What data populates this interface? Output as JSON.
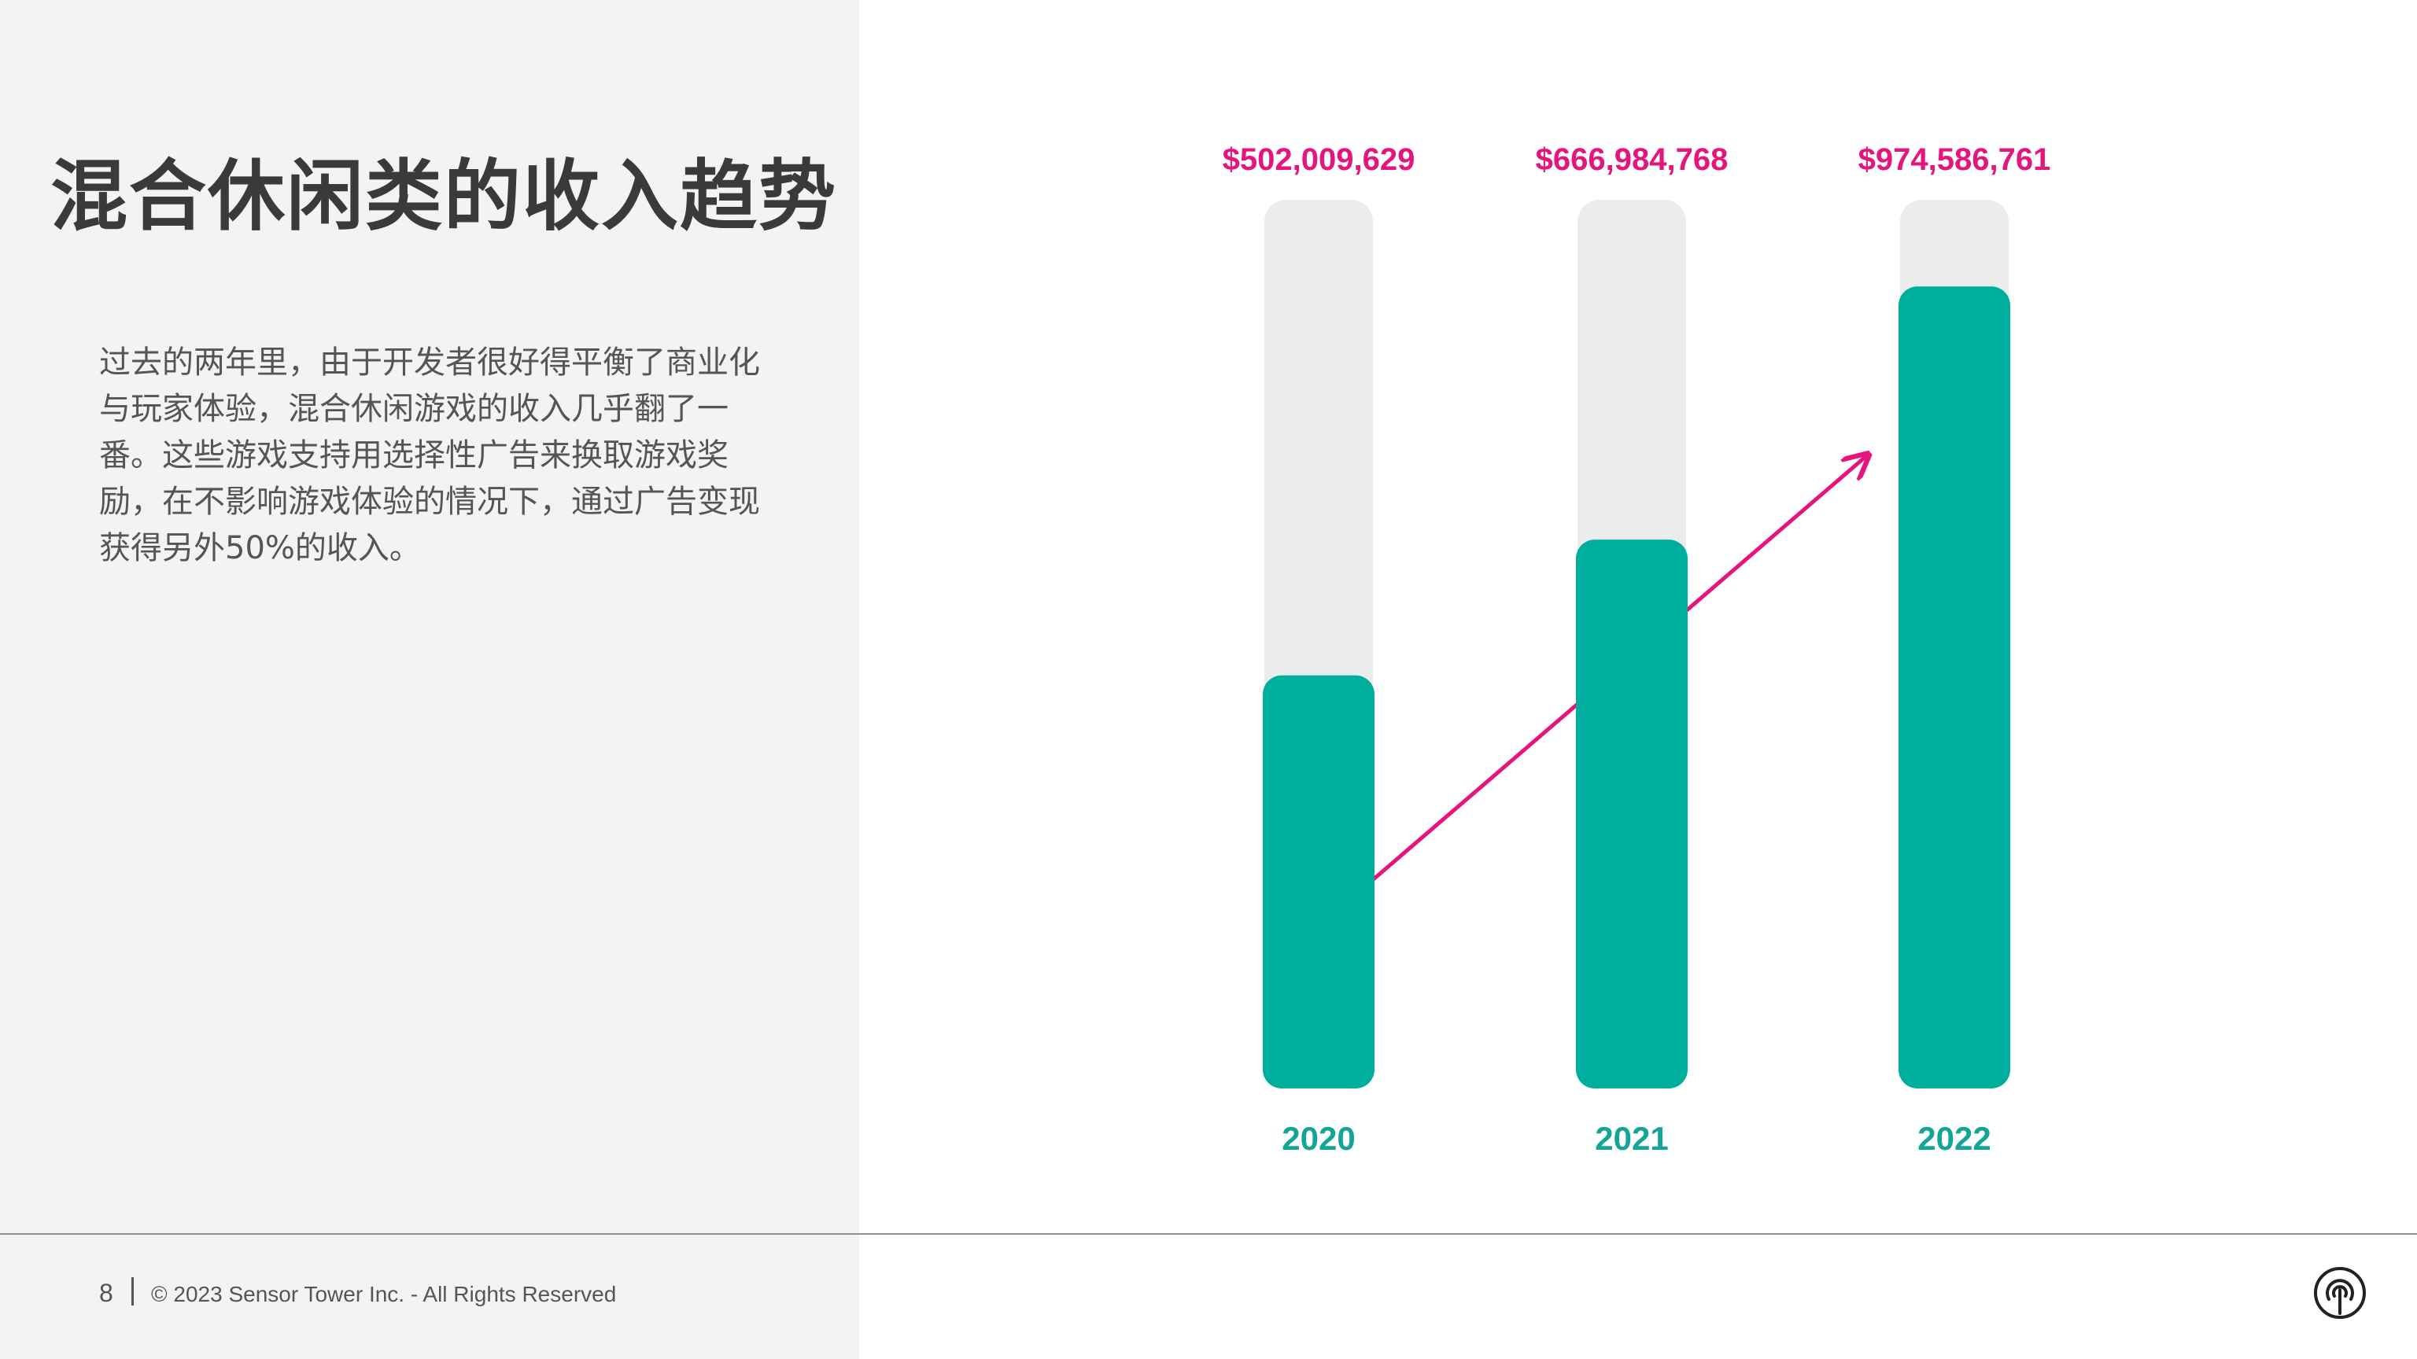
{
  "slide": {
    "title": "混合休闲类的收入趋势",
    "description": "过去的两年里，由于开发者很好得平衡了商业化与玩家体验，混合休闲游戏的收入几乎翻了一番。这些游戏支持用选择性广告来换取游戏奖励，在不影响游戏体验的情况下，通过广告变现获得另外50%的收入。"
  },
  "footer": {
    "page_number": "8",
    "copyright": "© 2023 Sensor Tower Inc. - All Rights Reserved",
    "logo_icon": "sensor-tower-logo-icon"
  },
  "colors": {
    "bar_fill": "#00ae9d",
    "bar_track": "#ececec",
    "value_label": "#e6157e",
    "year_label": "#13a597",
    "trend_arrow": "#e6157e",
    "left_panel": "#f3f3f3"
  },
  "chart_data": {
    "type": "bar",
    "title": "",
    "xlabel": "",
    "ylabel": "",
    "categories": [
      "2020",
      "2021",
      "2022"
    ],
    "values": [
      502009629,
      666984768,
      974586761
    ],
    "value_labels": [
      "$502,009,629",
      "$666,984,768",
      "$974,586,761"
    ],
    "ylim": [
      0,
      1080000000
    ],
    "grid": false,
    "legend": "none",
    "annotations": [
      {
        "type": "trend-arrow",
        "from": "2020",
        "to": "2022"
      }
    ]
  }
}
